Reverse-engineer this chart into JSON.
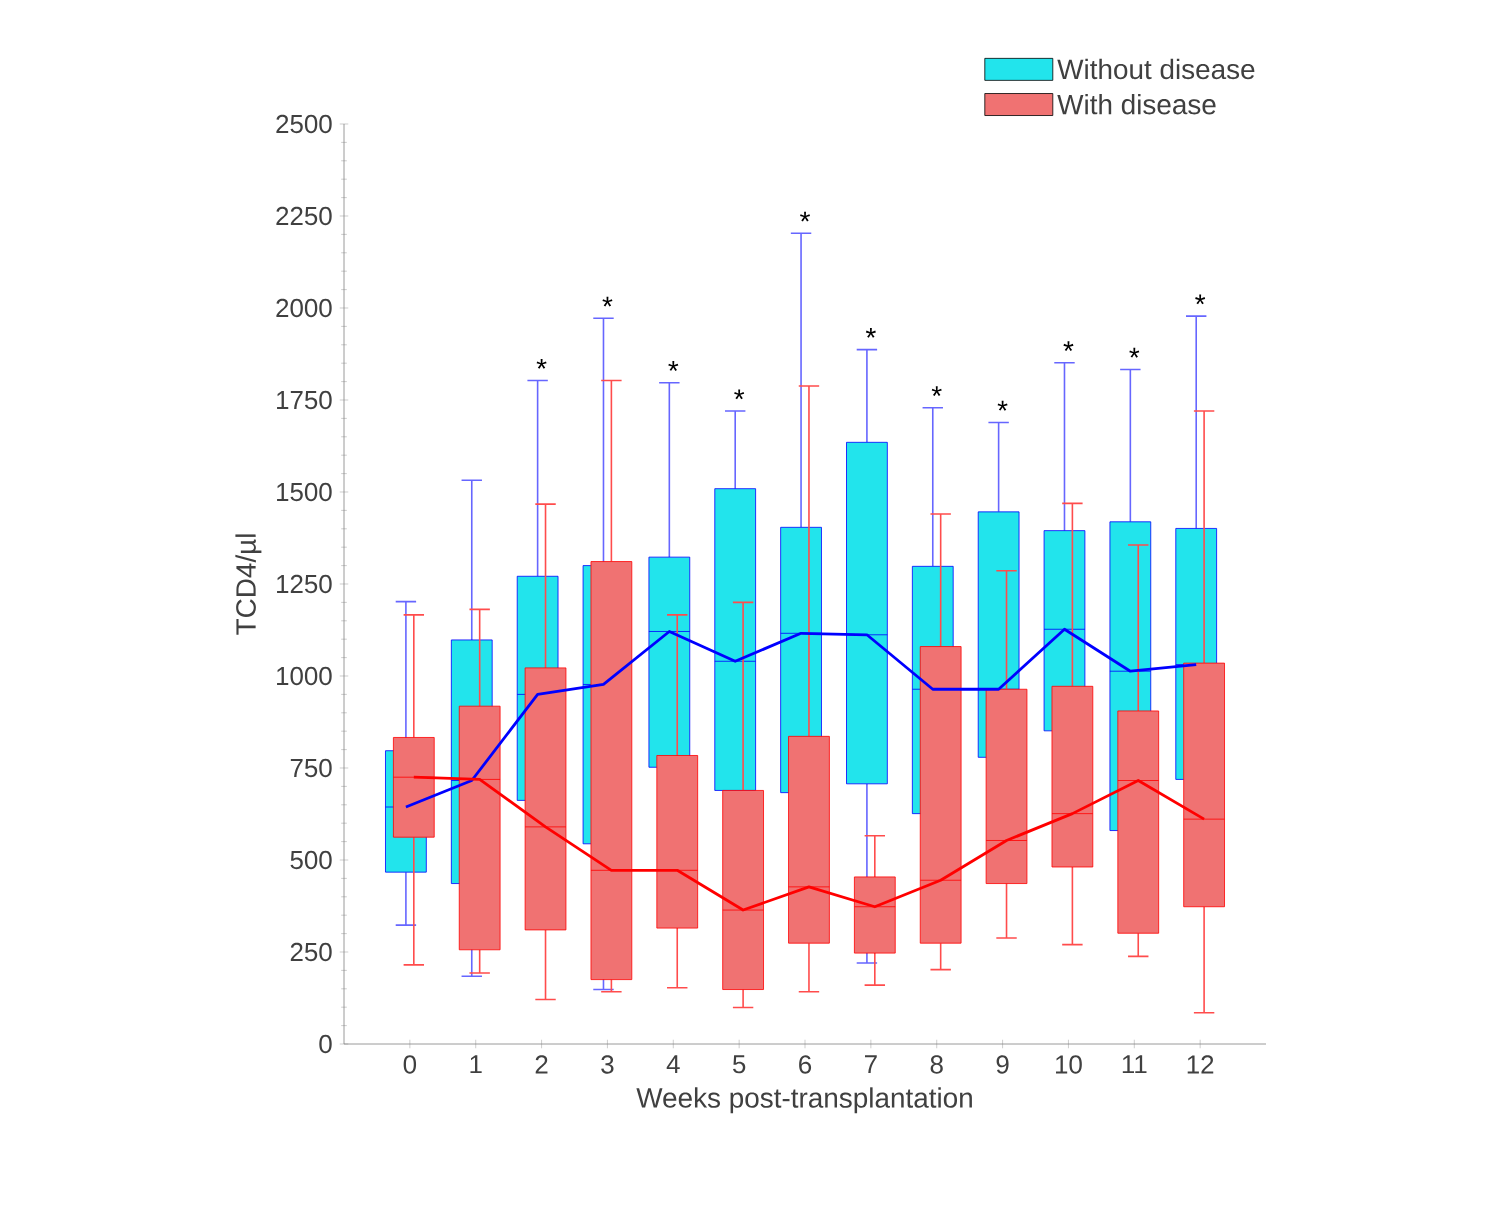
{
  "chart_data": {
    "type": "box",
    "xlabel": "Weeks post-transplantation",
    "ylabel": "TCD4/µl",
    "categories": [
      "0",
      "1",
      "2",
      "3",
      "4",
      "5",
      "6",
      "7",
      "8",
      "9",
      "10",
      "11",
      "12"
    ],
    "ylim": [
      0,
      2500
    ],
    "yticks": [
      0,
      250,
      500,
      750,
      1000,
      1250,
      1500,
      1750,
      2000,
      2250,
      2500
    ],
    "legend": "top right",
    "series": [
      {
        "name": "Without disease",
        "color": "#22e4ec",
        "boxes": [
          {
            "low": 323,
            "q1": 467,
            "median": 644,
            "q3": 797,
            "high": 1202
          },
          {
            "low": 184,
            "q1": 436,
            "median": 716,
            "q3": 1098,
            "high": 1532
          },
          {
            "low": 400,
            "q1": 662,
            "median": 950,
            "q3": 1271,
            "high": 1803
          },
          {
            "low": 148,
            "q1": 544,
            "median": 977,
            "q3": 1300,
            "high": 1972
          },
          {
            "low": 600,
            "q1": 752,
            "median": 1121,
            "q3": 1323,
            "high": 1797
          },
          {
            "low": 500,
            "q1": 689,
            "median": 1040,
            "q3": 1509,
            "high": 1720
          },
          {
            "low": 500,
            "q1": 683,
            "median": 1116,
            "q3": 1404,
            "high": 2203
          },
          {
            "low": 220,
            "q1": 707,
            "median": 1112,
            "q3": 1635,
            "high": 1887
          },
          {
            "low": 450,
            "q1": 626,
            "median": 964,
            "q3": 1298,
            "high": 1729
          },
          {
            "low": 600,
            "q1": 779,
            "median": 964,
            "q3": 1446,
            "high": 1689
          },
          {
            "low": 650,
            "q1": 851,
            "median": 1127,
            "q3": 1395,
            "high": 1851
          },
          {
            "low": 400,
            "q1": 580,
            "median": 1013,
            "q3": 1419,
            "high": 1833
          },
          {
            "low": 550,
            "q1": 719,
            "median": 1031,
            "q3": 1401,
            "high": 1978
          }
        ]
      },
      {
        "name": "With disease",
        "color": "#f07272",
        "boxes": [
          {
            "low": 215,
            "q1": 562,
            "median": 725,
            "q3": 833,
            "high": 1166
          },
          {
            "low": 193,
            "q1": 256,
            "median": 719,
            "q3": 918,
            "high": 1181
          },
          {
            "low": 121,
            "q1": 310,
            "median": 590,
            "q3": 1022,
            "high": 1467
          },
          {
            "low": 142,
            "q1": 175,
            "median": 472,
            "q3": 1311,
            "high": 1803
          },
          {
            "low": 153,
            "q1": 315,
            "median": 472,
            "q3": 784,
            "high": 1166
          },
          {
            "low": 99,
            "q1": 148,
            "median": 364,
            "q3": 689,
            "high": 1200
          },
          {
            "low": 142,
            "q1": 274,
            "median": 427,
            "q3": 836,
            "high": 1788
          },
          {
            "low": 160,
            "q1": 247,
            "median": 373,
            "q3": 454,
            "high": 566
          },
          {
            "low": 202,
            "q1": 274,
            "median": 445,
            "q3": 1080,
            "high": 1440
          },
          {
            "low": 288,
            "q1": 436,
            "median": 553,
            "q3": 964,
            "high": 1286
          },
          {
            "low": 270,
            "q1": 481,
            "median": 626,
            "q3": 972,
            "high": 1469
          },
          {
            "low": 238,
            "q1": 301,
            "median": 716,
            "q3": 905,
            "high": 1356
          },
          {
            "low": 85,
            "q1": 373,
            "median": 611,
            "q3": 1035,
            "high": 1720
          }
        ]
      },
      {
        "type": "line",
        "color": "#0000ff",
        "values": [
          644,
          716,
          950,
          977,
          1121,
          1040,
          1116,
          1112,
          964,
          964,
          1127,
          1013,
          1031
        ]
      },
      {
        "type": "line",
        "color": "#ff0000",
        "values": [
          725,
          719,
          590,
          472,
          472,
          364,
          427,
          373,
          445,
          553,
          626,
          716,
          611
        ]
      }
    ],
    "annotations": [
      {
        "text": "*",
        "x": "2",
        "y": 1803
      },
      {
        "text": "*",
        "x": "3",
        "y": 1972
      },
      {
        "text": "*",
        "x": "4",
        "y": 1797
      },
      {
        "text": "*",
        "x": "5",
        "y": 1720
      },
      {
        "text": "*",
        "x": "6",
        "y": 2203
      },
      {
        "text": "*",
        "x": "7",
        "y": 1887
      },
      {
        "text": "*",
        "x": "8",
        "y": 1729
      },
      {
        "text": "*",
        "x": "9",
        "y": 1689
      },
      {
        "text": "*",
        "x": "10",
        "y": 1851
      },
      {
        "text": "*",
        "x": "11",
        "y": 1833
      },
      {
        "text": "*",
        "x": "12",
        "y": 1978
      }
    ]
  }
}
